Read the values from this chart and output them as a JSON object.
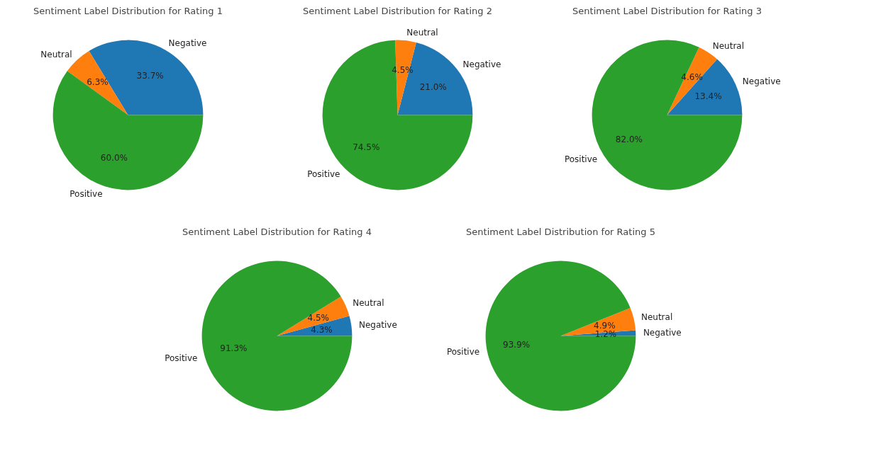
{
  "chart_data": [
    {
      "type": "pie",
      "title": "Sentiment Label Distribution for Rating 1",
      "categories": [
        "Negative",
        "Neutral",
        "Positive"
      ],
      "values": [
        33.7,
        6.3,
        60.0
      ],
      "colors": [
        "#1f77b4",
        "#ff7f0e",
        "#2ca02c"
      ],
      "value_labels": [
        "33.7%",
        "6.3%",
        "60.0%"
      ]
    },
    {
      "type": "pie",
      "title": "Sentiment Label Distribution for Rating 2",
      "categories": [
        "Negative",
        "Neutral",
        "Positive"
      ],
      "values": [
        21.0,
        4.5,
        74.5
      ],
      "colors": [
        "#1f77b4",
        "#ff7f0e",
        "#2ca02c"
      ],
      "value_labels": [
        "21.0%",
        "4.5%",
        "74.5%"
      ]
    },
    {
      "type": "pie",
      "title": "Sentiment Label Distribution for Rating 3",
      "categories": [
        "Negative",
        "Neutral",
        "Positive"
      ],
      "values": [
        13.4,
        4.6,
        82.0
      ],
      "colors": [
        "#1f77b4",
        "#ff7f0e",
        "#2ca02c"
      ],
      "value_labels": [
        "13.4%",
        "4.6%",
        "82.0%"
      ]
    },
    {
      "type": "pie",
      "title": "Sentiment Label Distribution for Rating 4",
      "categories": [
        "Negative",
        "Neutral",
        "Positive"
      ],
      "values": [
        4.3,
        4.5,
        91.3
      ],
      "colors": [
        "#1f77b4",
        "#ff7f0e",
        "#2ca02c"
      ],
      "value_labels": [
        "4.3%",
        "4.5%",
        "91.3%"
      ]
    },
    {
      "type": "pie",
      "title": "Sentiment Label Distribution for Rating 5",
      "categories": [
        "Negative",
        "Neutral",
        "Positive"
      ],
      "values": [
        1.2,
        4.9,
        93.9
      ],
      "colors": [
        "#1f77b4",
        "#ff7f0e",
        "#2ca02c"
      ],
      "value_labels": [
        "1.2%",
        "4.9%",
        "93.9%"
      ]
    }
  ]
}
